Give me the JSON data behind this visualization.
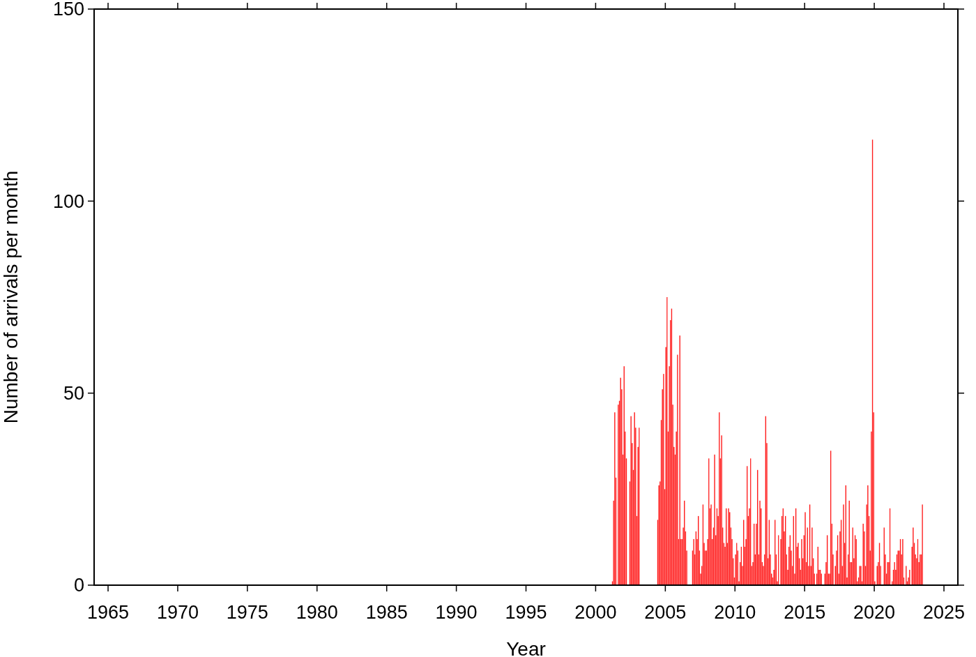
{
  "chart_data": {
    "type": "bar",
    "xlabel": "Year",
    "ylabel": "Number of arrivals per month",
    "color": "#ff1a1a",
    "xlim": [
      "1964-01",
      "2026-01"
    ],
    "ylim": [
      0,
      150
    ],
    "xticks": [
      "1965",
      "1970",
      "1975",
      "1980",
      "1985",
      "1990",
      "1995",
      "2000",
      "2005",
      "2010",
      "2015",
      "2020",
      "2025"
    ],
    "yticks": [
      0,
      50,
      100,
      150
    ],
    "x": [
      "2001-01",
      "2001-02",
      "2001-03",
      "2001-04",
      "2001-05",
      "2001-06",
      "2001-07",
      "2001-08",
      "2001-09",
      "2001-10",
      "2001-11",
      "2001-12",
      "2002-01",
      "2002-02",
      "2002-03",
      "2002-04",
      "2002-05",
      "2002-06",
      "2002-07",
      "2002-08",
      "2002-09",
      "2002-10",
      "2002-11",
      "2002-12",
      "2003-01",
      "2003-02",
      "2003-03",
      "2003-04",
      "2003-05",
      "2003-06",
      "2003-07",
      "2003-08",
      "2003-09",
      "2003-10",
      "2003-11",
      "2003-12",
      "2004-01",
      "2004-02",
      "2004-03",
      "2004-04",
      "2004-05",
      "2004-06",
      "2004-07",
      "2004-08",
      "2004-09",
      "2004-10",
      "2004-11",
      "2004-12",
      "2005-01",
      "2005-02",
      "2005-03",
      "2005-04",
      "2005-05",
      "2005-06",
      "2005-07",
      "2005-08",
      "2005-09",
      "2005-10",
      "2005-11",
      "2005-12",
      "2006-01",
      "2006-02",
      "2006-03",
      "2006-04",
      "2006-05",
      "2006-06",
      "2006-07",
      "2006-08",
      "2006-09",
      "2006-10",
      "2006-11",
      "2006-12",
      "2007-01",
      "2007-02",
      "2007-03",
      "2007-04",
      "2007-05",
      "2007-06",
      "2007-07",
      "2007-08",
      "2007-09",
      "2007-10",
      "2007-11",
      "2007-12",
      "2008-01",
      "2008-02",
      "2008-03",
      "2008-04",
      "2008-05",
      "2008-06",
      "2008-07",
      "2008-08",
      "2008-09",
      "2008-10",
      "2008-11",
      "2008-12",
      "2009-01",
      "2009-02",
      "2009-03",
      "2009-04",
      "2009-05",
      "2009-06",
      "2009-07",
      "2009-08",
      "2009-09",
      "2009-10",
      "2009-11",
      "2009-12",
      "2010-01",
      "2010-02",
      "2010-03",
      "2010-04",
      "2010-05",
      "2010-06",
      "2010-07",
      "2010-08",
      "2010-09",
      "2010-10",
      "2010-11",
      "2010-12",
      "2011-01",
      "2011-02",
      "2011-03",
      "2011-04",
      "2011-05",
      "2011-06",
      "2011-07",
      "2011-08",
      "2011-09",
      "2011-10",
      "2011-11",
      "2011-12",
      "2012-01",
      "2012-02",
      "2012-03",
      "2012-04",
      "2012-05",
      "2012-06",
      "2012-07",
      "2012-08",
      "2012-09",
      "2012-10",
      "2012-11",
      "2012-12",
      "2013-01",
      "2013-02",
      "2013-03",
      "2013-04",
      "2013-05",
      "2013-06",
      "2013-07",
      "2013-08",
      "2013-09",
      "2013-10",
      "2013-11",
      "2013-12",
      "2014-01",
      "2014-02",
      "2014-03",
      "2014-04",
      "2014-05",
      "2014-06",
      "2014-07",
      "2014-08",
      "2014-09",
      "2014-10",
      "2014-11",
      "2014-12",
      "2015-01",
      "2015-02",
      "2015-03",
      "2015-04",
      "2015-05",
      "2015-06",
      "2015-07",
      "2015-08",
      "2015-09",
      "2015-10",
      "2015-11",
      "2015-12",
      "2016-01",
      "2016-02",
      "2016-03",
      "2016-04",
      "2016-05",
      "2016-06",
      "2016-07",
      "2016-08",
      "2016-09",
      "2016-10",
      "2016-11",
      "2016-12",
      "2017-01",
      "2017-02",
      "2017-03",
      "2017-04",
      "2017-05",
      "2017-06",
      "2017-07",
      "2017-08",
      "2017-09",
      "2017-10",
      "2017-11",
      "2017-12",
      "2018-01",
      "2018-02",
      "2018-03",
      "2018-04",
      "2018-05",
      "2018-06",
      "2018-07",
      "2018-08",
      "2018-09",
      "2018-10",
      "2018-11",
      "2018-12",
      "2019-01",
      "2019-02",
      "2019-03",
      "2019-04",
      "2019-05",
      "2019-06",
      "2019-07",
      "2019-08",
      "2019-09",
      "2019-10",
      "2019-11",
      "2019-12",
      "2020-01",
      "2020-02",
      "2020-03",
      "2020-04",
      "2020-05",
      "2020-06",
      "2020-07",
      "2020-08",
      "2020-09",
      "2020-10",
      "2020-11",
      "2020-12",
      "2021-01",
      "2021-02",
      "2021-03",
      "2021-04",
      "2021-05",
      "2021-06",
      "2021-07",
      "2021-08",
      "2021-09",
      "2021-10",
      "2021-11",
      "2021-12",
      "2022-01",
      "2022-02",
      "2022-03",
      "2022-04",
      "2022-05",
      "2022-06",
      "2022-07",
      "2022-08",
      "2022-09",
      "2022-10",
      "2022-11",
      "2022-12",
      "2023-01",
      "2023-02",
      "2023-03",
      "2023-04",
      "2023-05",
      "2023-06"
    ],
    "values": [
      0,
      0,
      1,
      22,
      45,
      28,
      0,
      47,
      48,
      54,
      51,
      34,
      57,
      40,
      33,
      0,
      0,
      27,
      44,
      37,
      30,
      45,
      41,
      18,
      36,
      41,
      0,
      0,
      0,
      0,
      0,
      0,
      0,
      0,
      0,
      0,
      0,
      0,
      0,
      0,
      0,
      17,
      26,
      27,
      43,
      51,
      55,
      25,
      62,
      75,
      40,
      57,
      69,
      72,
      47,
      36,
      34,
      40,
      60,
      12,
      65,
      12,
      12,
      15,
      22,
      14,
      9,
      0,
      0,
      0,
      0,
      9,
      12,
      8,
      14,
      12,
      18,
      9,
      3,
      5,
      21,
      11,
      9,
      9,
      12,
      33,
      20,
      21,
      12,
      15,
      34,
      13,
      20,
      18,
      45,
      33,
      39,
      15,
      11,
      10,
      20,
      11,
      20,
      19,
      15,
      12,
      7,
      2,
      8,
      11,
      9,
      1,
      6,
      10,
      5,
      17,
      10,
      12,
      31,
      18,
      20,
      33,
      5,
      6,
      16,
      8,
      16,
      30,
      8,
      22,
      20,
      6,
      5,
      8,
      44,
      37,
      7,
      17,
      8,
      3,
      2,
      4,
      17,
      8,
      1,
      13,
      0,
      12,
      18,
      20,
      14,
      18,
      8,
      4,
      10,
      13,
      9,
      5,
      18,
      3,
      20,
      10,
      11,
      7,
      4,
      12,
      7,
      13,
      19,
      6,
      15,
      5,
      21,
      5,
      15,
      7,
      3,
      0,
      3,
      10,
      4,
      4,
      3,
      0,
      0,
      3,
      6,
      13,
      3,
      3,
      35,
      16,
      8,
      0,
      5,
      9,
      13,
      3,
      14,
      17,
      5,
      21,
      11,
      26,
      2,
      8,
      22,
      6,
      6,
      15,
      7,
      13,
      12,
      1,
      2,
      5,
      5,
      1,
      16,
      14,
      5,
      21,
      26,
      18,
      9,
      40,
      116,
      45,
      1,
      0,
      5,
      6,
      11,
      5,
      0,
      0,
      15,
      8,
      3,
      6,
      6,
      20,
      0,
      1,
      4,
      6,
      4,
      8,
      9,
      9,
      12,
      8,
      12,
      2,
      0,
      5,
      1,
      2,
      4,
      0,
      10,
      15,
      11,
      8,
      7,
      12,
      6,
      8,
      8,
      21
    ]
  }
}
